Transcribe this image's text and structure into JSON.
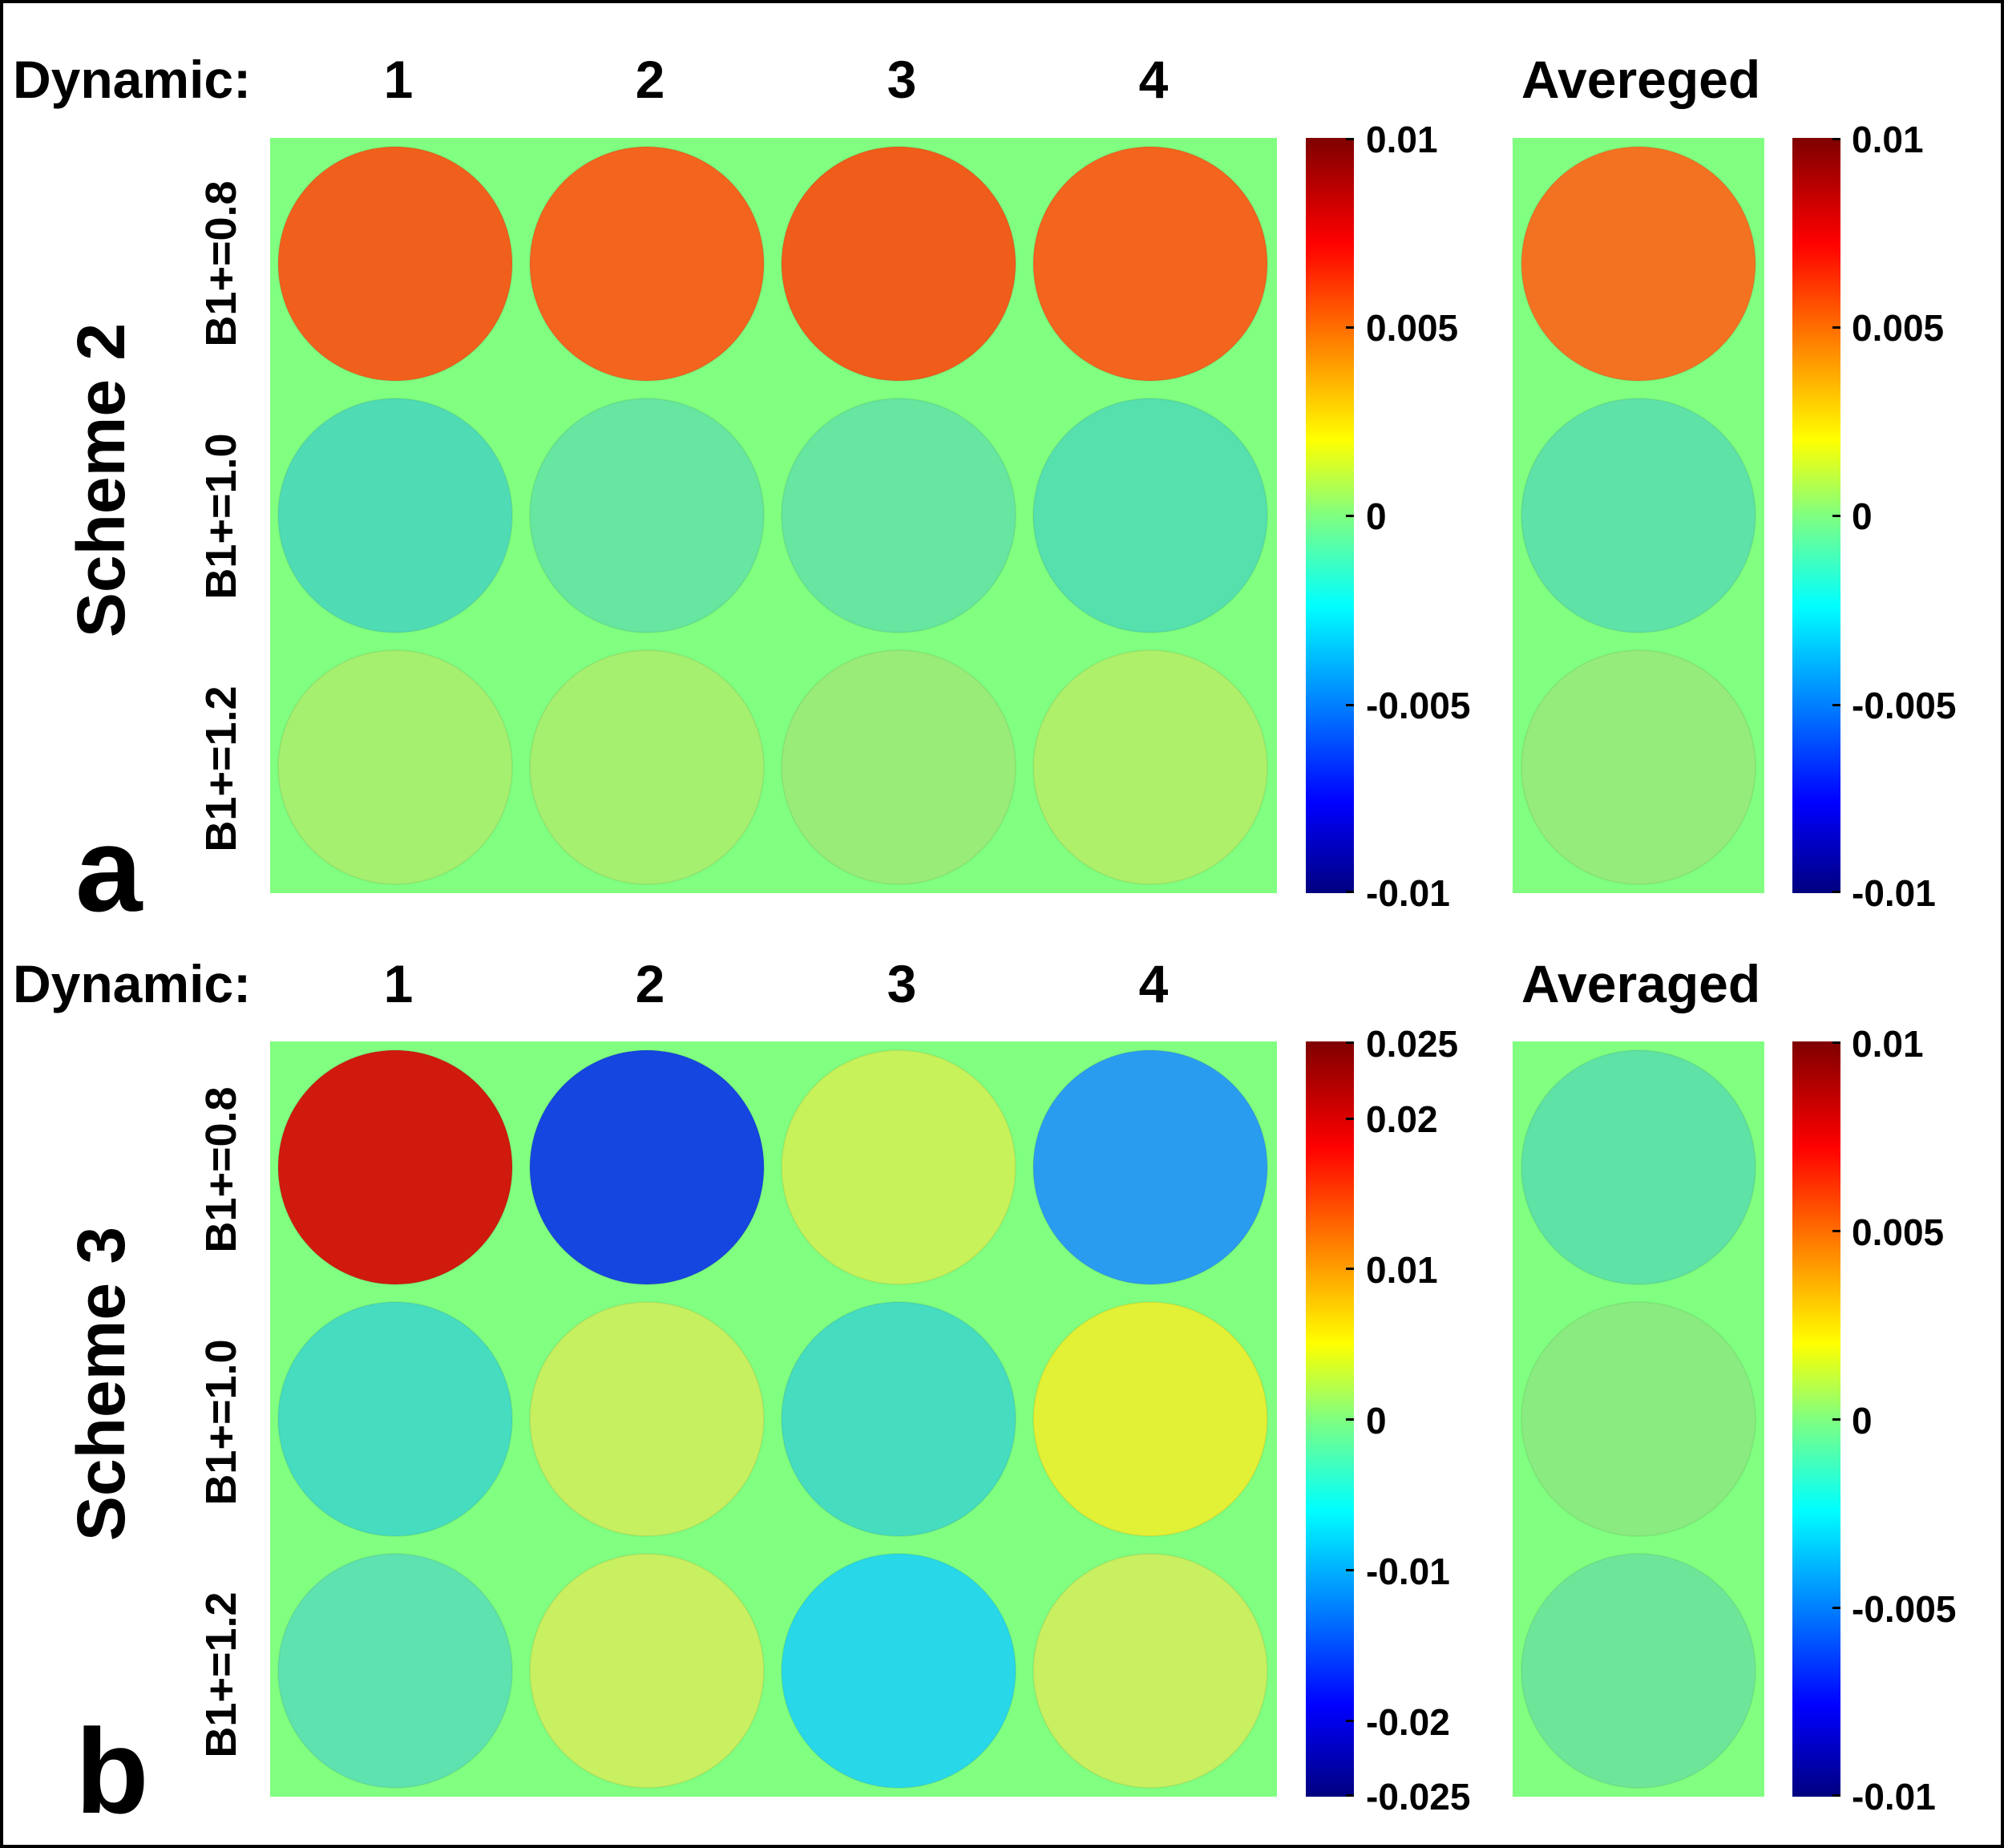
{
  "panel_a": {
    "letter": "a",
    "scheme_label": "Scheme 2",
    "dynamic_label": "Dynamic:",
    "dynamics": [
      "1",
      "2",
      "3",
      "4"
    ],
    "averaged_label": "Avereged",
    "rows": [
      "B1+=0.8",
      "B1+=1.0",
      "B1+=1.2"
    ],
    "colorbar_main_ticks": [
      "0.01",
      "0.005",
      "0",
      "-0.005",
      "-0.01"
    ],
    "colorbar_avg_ticks": [
      "0.01",
      "0.005",
      "0",
      "-0.005",
      "-0.01"
    ],
    "map_colors": [
      [
        "#f0601c",
        "#f3641e",
        "#f05c1a",
        "#f3641e"
      ],
      [
        "#4fdcb5",
        "#66e6a0",
        "#66e6a0",
        "#55e0ae"
      ],
      [
        "#a6f070",
        "#a6f070",
        "#9aec78",
        "#aef06a"
      ]
    ],
    "avg_colors": [
      "#f37222",
      "#5ee2a8",
      "#96ec7a"
    ]
  },
  "panel_b": {
    "letter": "b",
    "scheme_label": "Scheme 3",
    "dynamic_label": "Dynamic:",
    "dynamics": [
      "1",
      "2",
      "3",
      "4"
    ],
    "averaged_label": "Averaged",
    "rows": [
      "B1+=0.8",
      "B1+=1.0",
      "B1+=1.2"
    ],
    "colorbar_main_ticks": [
      "0.025",
      "0.02",
      "0.01",
      "0",
      "-0.01",
      "-0.02",
      "-0.025"
    ],
    "colorbar_avg_ticks": [
      "0.01",
      "0.005",
      "0",
      "-0.005",
      "-0.01"
    ],
    "map_colors": [
      [
        "#d01a0e",
        "#1546e0",
        "#c8f25a",
        "#2a9cf0"
      ],
      [
        "#46dcc0",
        "#c6f060",
        "#46dcc0",
        "#e2f036"
      ],
      [
        "#5ee2b0",
        "#c8f060",
        "#28d8e8",
        "#c8f060"
      ]
    ],
    "avg_colors": [
      "#5ee2a6",
      "#8aec80",
      "#6ee69a"
    ]
  },
  "colors": {
    "background_map": "#80ff80",
    "frame": "#000000"
  }
}
